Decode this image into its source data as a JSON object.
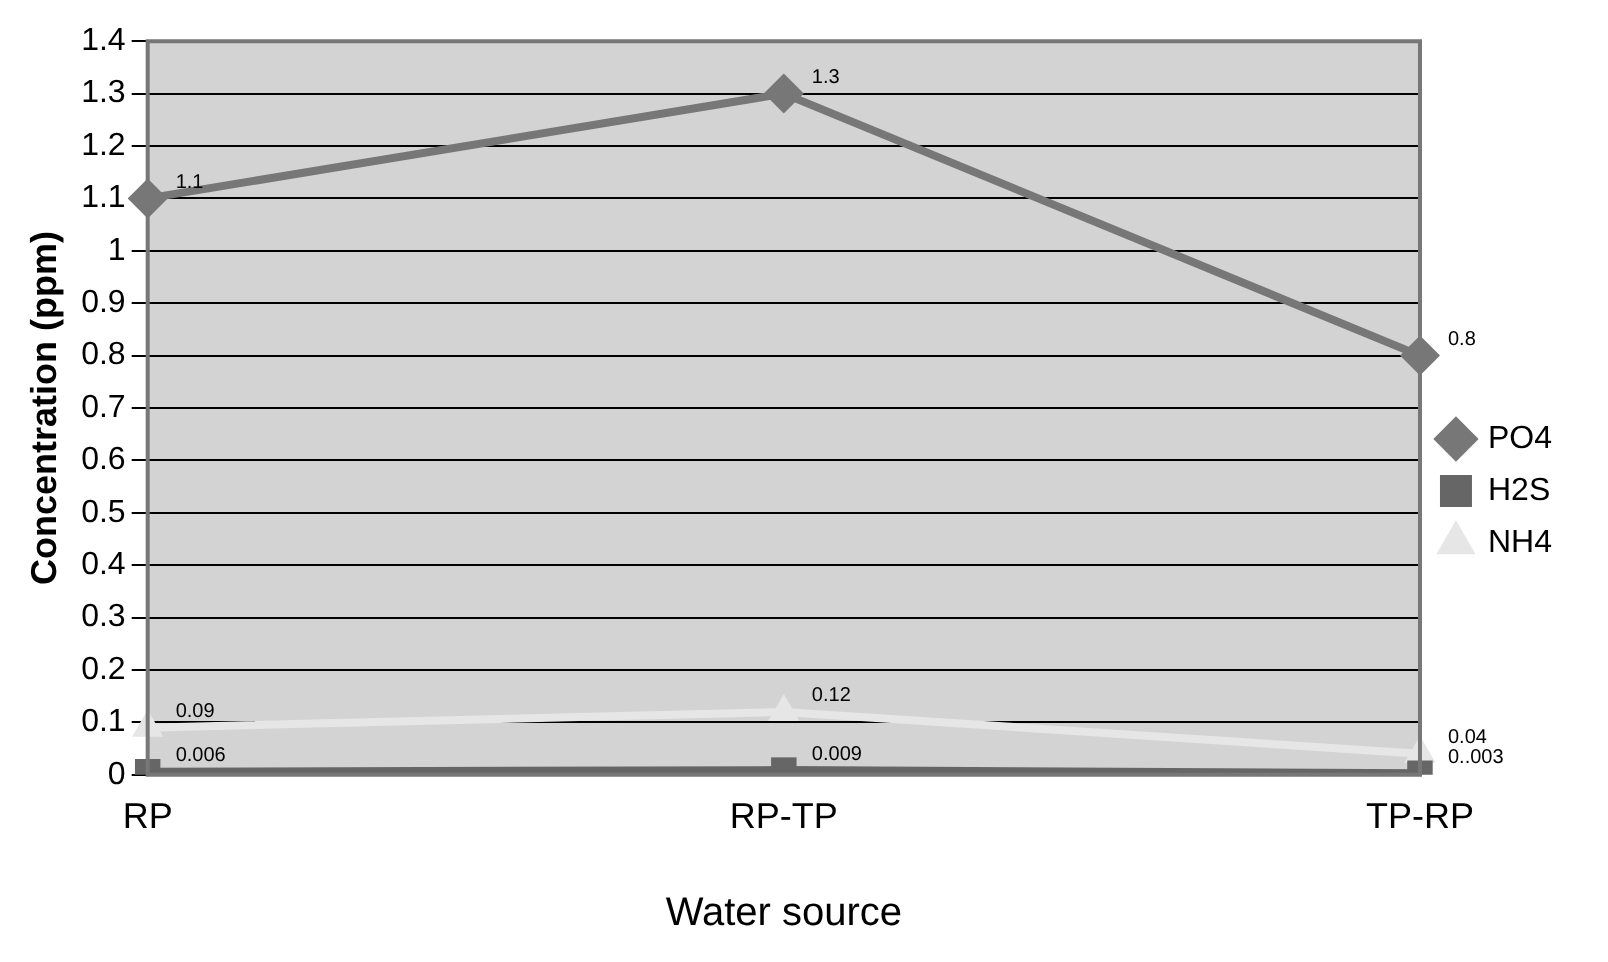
{
  "chart_data": {
    "type": "line",
    "xlabel": "Water source",
    "ylabel": "Concentration (ppm)",
    "categories": [
      "RP",
      "RP-TP",
      "TP-RP"
    ],
    "series": [
      {
        "name": "PO4",
        "color": "#777777",
        "marker": "diamond",
        "values": [
          1.1,
          1.3,
          0.8
        ],
        "value_labels": [
          "1.1",
          "1.3",
          "0.8"
        ]
      },
      {
        "name": "H2S",
        "color": "#666666",
        "marker": "square",
        "values": [
          0.006,
          0.009,
          0.003
        ],
        "value_labels": [
          "0.006",
          "0.009",
          "0..003"
        ]
      },
      {
        "name": "NH4",
        "color": "#e6e6e6",
        "marker": "triangle",
        "values": [
          0.09,
          0.12,
          0.04
        ],
        "value_labels": [
          "0.09",
          "0.12",
          "0.04"
        ]
      }
    ],
    "ylim": [
      0,
      1.4
    ],
    "yticks": [
      0,
      0.1,
      0.2,
      0.3,
      0.4,
      0.5,
      0.6,
      0.7,
      0.8,
      0.9,
      1,
      1.1,
      1.2,
      1.3,
      1.4
    ],
    "grid": "y",
    "legend": "right"
  }
}
